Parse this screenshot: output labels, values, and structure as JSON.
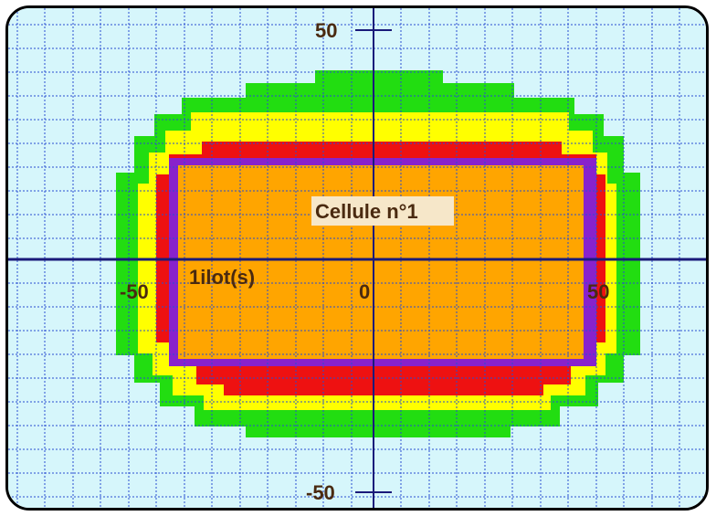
{
  "diagram": {
    "axis_labels": {
      "y_top": "50",
      "y_bottom": "-50",
      "x_left": "-50",
      "x_center": "0",
      "x_right": "50"
    },
    "cell_label": "Cellule n°1",
    "ilot_label": "1ilot(s)",
    "colors": {
      "background": "#d6f6fb",
      "grid": "#2a4dd0",
      "axis": "#1a1a7a",
      "zone_green": "#22dd11",
      "zone_yellow": "#ffff00",
      "zone_red": "#ee1111",
      "zone_purple": "#8822cc",
      "cell_orange": "#ffa500",
      "label_text": "#4a2a10",
      "label_bg": "#f6e7c9",
      "frame": "#000000"
    }
  }
}
